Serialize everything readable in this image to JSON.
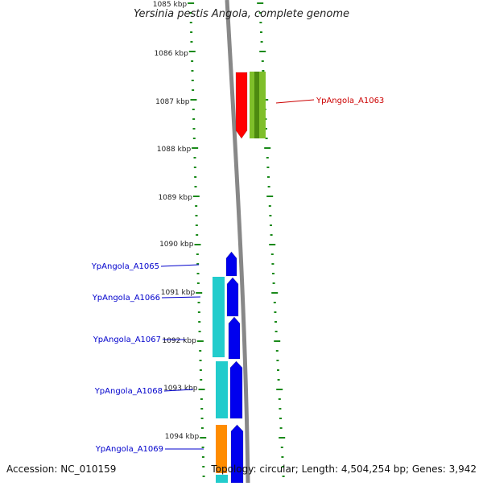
{
  "title": "Yersinia pestis Angola, complete genome",
  "accession": "Accession: NC_010159",
  "topology": "Topology: circular; Length: 4,504,254 bp; Genes: 3,942",
  "colors": {
    "tick": "#1a8a1a",
    "backbone": "#888888",
    "label_red": "#cc0000",
    "label_blue": "#0000cc",
    "gene_red": "#ff0000",
    "gene_lime": "#7fbf2a",
    "gene_blue": "#0000ee",
    "gene_cyan": "#22cccc",
    "gene_orange": "#ff8c00"
  },
  "kbp_labels": [
    "1085 kbp",
    "1086 kbp",
    "1087 kbp",
    "1088 kbp",
    "1089 kbp",
    "1090 kbp",
    "1091 kbp",
    "1092 kbp",
    "1093 kbp",
    "1094 kbp"
  ],
  "gene_labels": [
    {
      "text": "YpAngola_A1063",
      "color": "red"
    },
    {
      "text": "YpAngola_A1065",
      "color": "blue"
    },
    {
      "text": "YpAngola_A1066",
      "color": "blue"
    },
    {
      "text": "YpAngola_A1067",
      "color": "blue"
    },
    {
      "text": "YpAngola_A1068",
      "color": "blue"
    },
    {
      "text": "YpAngola_A1069",
      "color": "blue"
    }
  ]
}
